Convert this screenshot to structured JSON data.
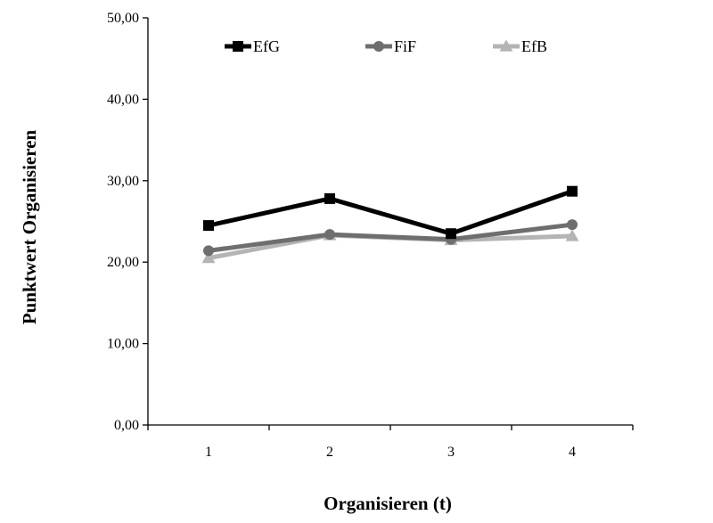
{
  "chart_data": {
    "type": "line",
    "title": "",
    "xlabel": "Organisieren (t)",
    "ylabel": "Punktwert Organisieren",
    "categories": [
      "1",
      "2",
      "3",
      "4"
    ],
    "ylim": [
      0,
      50
    ],
    "yticks": [
      "0,00",
      "10,00",
      "20,00",
      "30,00",
      "40,00",
      "50,00"
    ],
    "grid": false,
    "legend_position": "top",
    "series": [
      {
        "name": "EfG",
        "values": [
          24.5,
          27.8,
          23.5,
          28.7
        ],
        "color": "#000000",
        "marker": "square"
      },
      {
        "name": "FiF",
        "values": [
          21.4,
          23.4,
          22.8,
          24.6
        ],
        "color": "#6e6e6e",
        "marker": "circle"
      },
      {
        "name": "EfB",
        "values": [
          20.5,
          23.3,
          22.7,
          23.2
        ],
        "color": "#b4b4b4",
        "marker": "triangle"
      }
    ]
  }
}
